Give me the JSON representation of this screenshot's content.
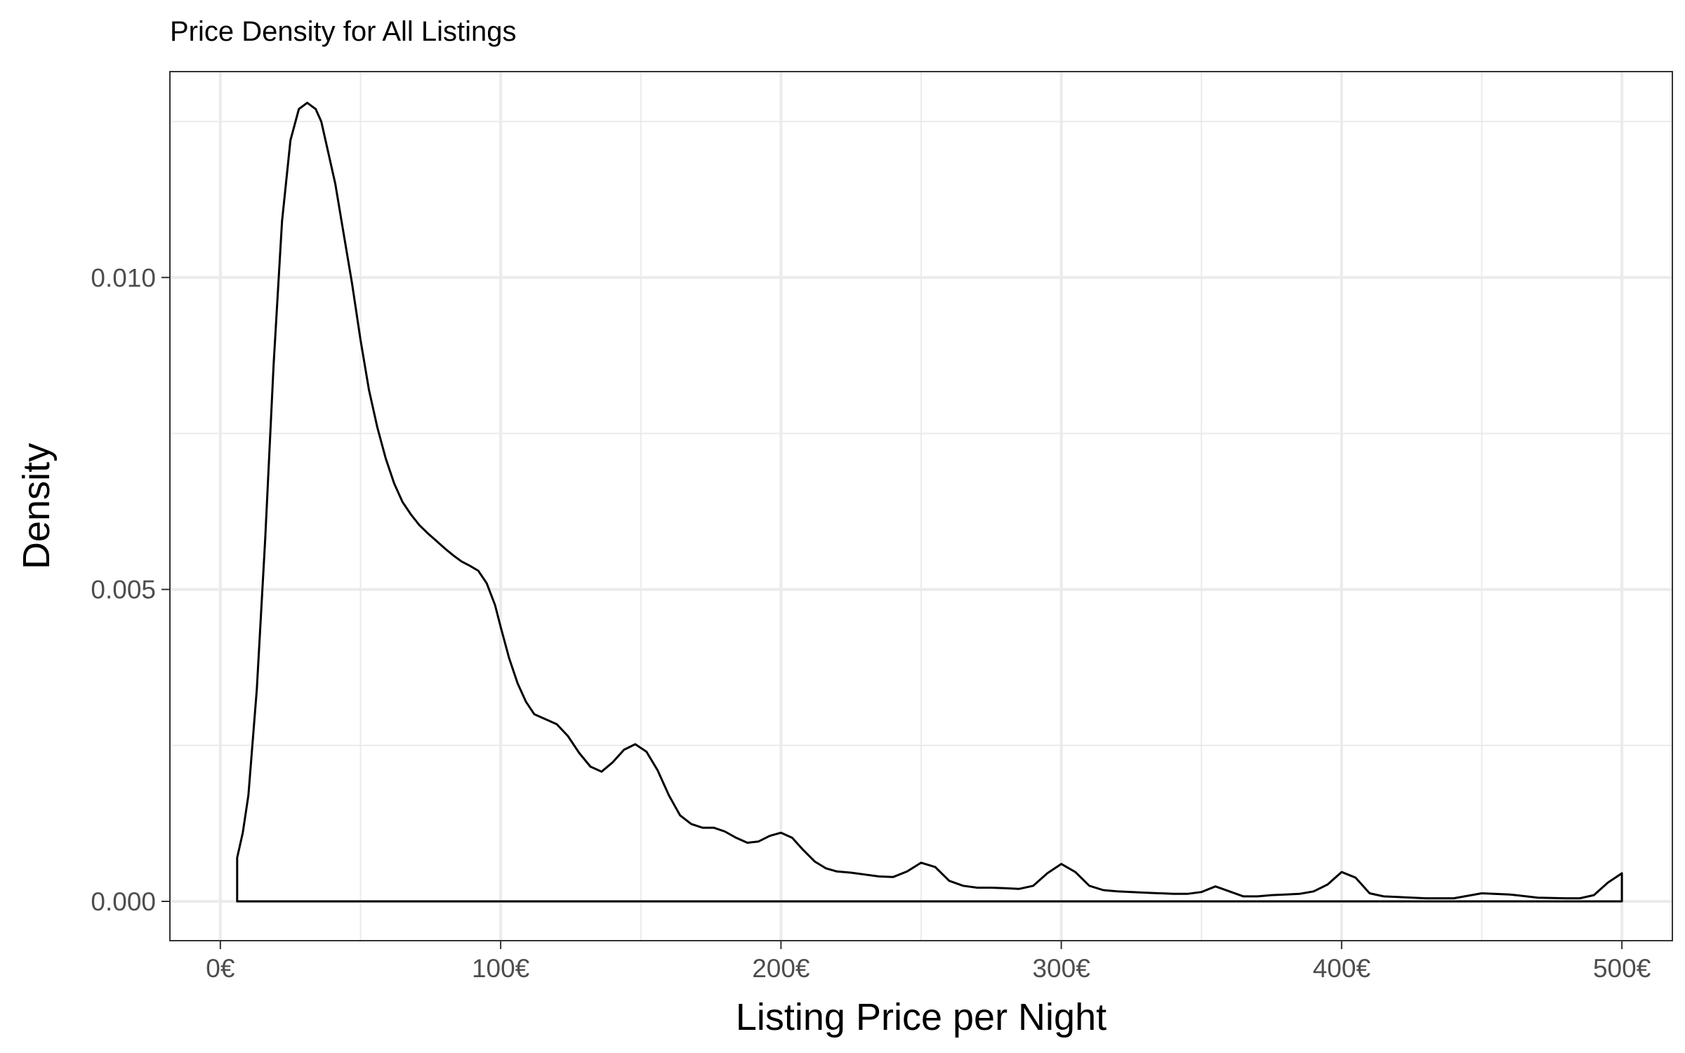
{
  "chart_data": {
    "type": "area",
    "title": "Price Density for All Listings",
    "xlabel": "Listing Price per Night",
    "ylabel": "Density",
    "xlim": [
      -18,
      518
    ],
    "ylim": [
      -0.00063,
      0.0133
    ],
    "x_ticks": [
      0,
      100,
      200,
      300,
      400,
      500
    ],
    "x_tick_labels": [
      "0€",
      "100€",
      "200€",
      "300€",
      "400€",
      "500€"
    ],
    "y_ticks": [
      0.0,
      0.005,
      0.01
    ],
    "y_tick_labels": [
      "0.000",
      "0.005",
      "0.010"
    ],
    "grid": true,
    "series": [
      {
        "x": [
          6,
          8,
          10,
          13,
          16,
          19,
          22,
          25,
          28,
          31,
          34,
          36,
          38,
          41,
          44,
          47,
          50,
          53,
          56,
          59,
          62,
          65,
          68,
          71,
          74,
          77,
          80,
          83,
          86,
          89,
          92,
          95,
          98,
          100,
          103,
          106,
          109,
          112,
          116,
          120,
          124,
          128,
          132,
          136,
          140,
          144,
          148,
          152,
          156,
          160,
          164,
          168,
          172,
          176,
          180,
          184,
          188,
          192,
          196,
          200,
          204,
          208,
          212,
          216,
          220,
          225,
          230,
          235,
          240,
          245,
          250,
          255,
          260,
          265,
          270,
          275,
          280,
          285,
          290,
          295,
          300,
          305,
          310,
          315,
          320,
          330,
          340,
          345,
          350,
          355,
          360,
          365,
          370,
          375,
          380,
          385,
          390,
          395,
          400,
          405,
          410,
          415,
          420,
          430,
          440,
          450,
          460,
          470,
          480,
          485,
          490,
          495,
          500
        ],
        "y": [
          0.0007,
          0.0011,
          0.0017,
          0.0034,
          0.0058,
          0.0086,
          0.0109,
          0.0122,
          0.0127,
          0.0128,
          0.0127,
          0.0125,
          0.0121,
          0.0115,
          0.0107,
          0.0099,
          0.009,
          0.0082,
          0.0076,
          0.0071,
          0.0067,
          0.0064,
          0.0062,
          0.00603,
          0.0059,
          0.00578,
          0.00566,
          0.00555,
          0.00545,
          0.00538,
          0.0053,
          0.0051,
          0.00475,
          0.0044,
          0.0039,
          0.0035,
          0.0032,
          0.003,
          0.00292,
          0.00284,
          0.00265,
          0.00238,
          0.00216,
          0.00208,
          0.00223,
          0.00243,
          0.00252,
          0.0024,
          0.0021,
          0.0017,
          0.00138,
          0.00124,
          0.00118,
          0.00118,
          0.00112,
          0.00102,
          0.00094,
          0.00096,
          0.00105,
          0.0011,
          0.00102,
          0.00082,
          0.00064,
          0.00053,
          0.00048,
          0.00046,
          0.00043,
          0.0004,
          0.00039,
          0.00048,
          0.00062,
          0.00055,
          0.00033,
          0.00025,
          0.00022,
          0.00022,
          0.00021,
          0.0002,
          0.00025,
          0.00045,
          0.0006,
          0.00047,
          0.00025,
          0.00018,
          0.00016,
          0.00014,
          0.00012,
          0.00012,
          0.00015,
          0.00024,
          0.00016,
          8e-05,
          8e-05,
          0.0001,
          0.00011,
          0.00012,
          0.00016,
          0.00027,
          0.00047,
          0.00038,
          0.00013,
          8e-05,
          7e-05,
          5e-05,
          5e-05,
          0.00013,
          0.00011,
          6e-05,
          5e-05,
          5e-05,
          0.0001,
          0.0003,
          0.00045
        ]
      }
    ]
  }
}
